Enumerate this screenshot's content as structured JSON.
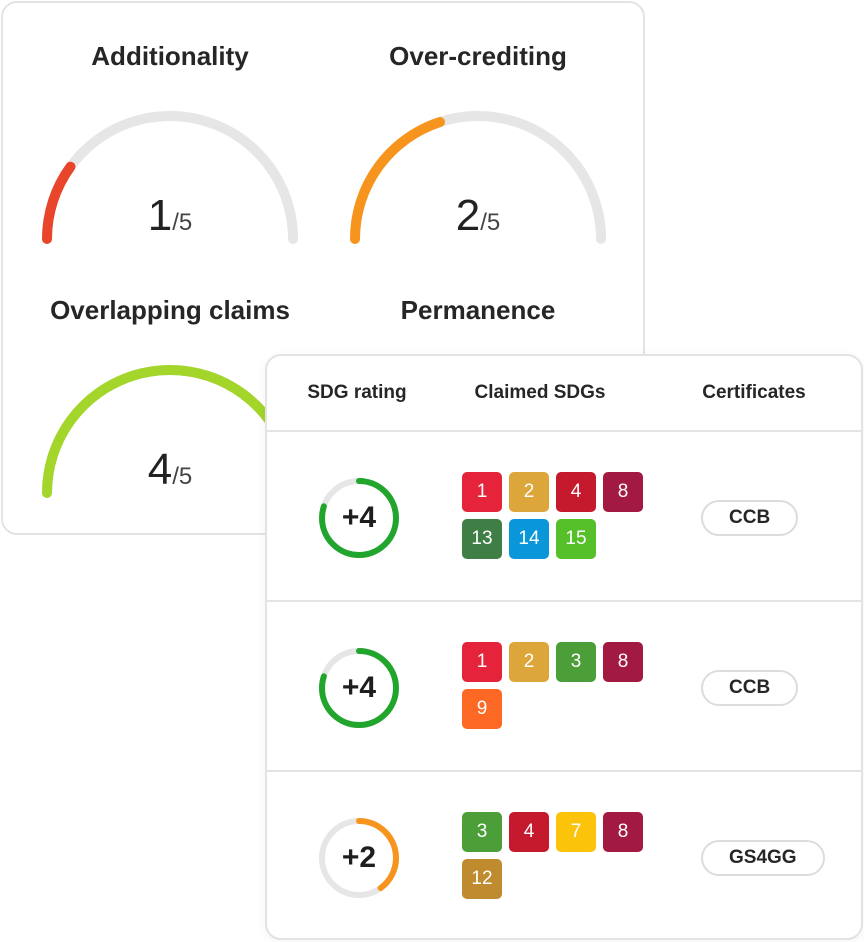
{
  "ratings": [
    {
      "title": "Additionality",
      "score": "1",
      "max": "/5",
      "fraction": 0.2,
      "color": "#e8452a"
    },
    {
      "title": "Over-crediting",
      "score": "2",
      "max": "/5",
      "fraction": 0.4,
      "color": "#f7941d"
    },
    {
      "title": "Overlapping claims",
      "score": "4",
      "max": "/5",
      "fraction": 0.8,
      "color": "#a3d52b"
    },
    {
      "title": "Permanence"
    }
  ],
  "table": {
    "headers": {
      "rating": "SDG rating",
      "claimed": "Claimed SDGs",
      "certs": "Certificates"
    },
    "rows": [
      {
        "rating": "+4",
        "fraction": 0.8,
        "ring_color": "#22a52c",
        "sdgs": [
          {
            "n": "1",
            "color": "#e5243b"
          },
          {
            "n": "2",
            "color": "#dda63a"
          },
          {
            "n": "4",
            "color": "#c5192d"
          },
          {
            "n": "8",
            "color": "#a21942"
          },
          {
            "n": "13",
            "color": "#3f7e44"
          },
          {
            "n": "14",
            "color": "#0a97d9"
          },
          {
            "n": "15",
            "color": "#56c02b"
          }
        ],
        "cert": "CCB"
      },
      {
        "rating": "+4",
        "fraction": 0.8,
        "ring_color": "#22a52c",
        "sdgs": [
          {
            "n": "1",
            "color": "#e5243b"
          },
          {
            "n": "2",
            "color": "#dda63a"
          },
          {
            "n": "3",
            "color": "#4c9f38"
          },
          {
            "n": "8",
            "color": "#a21942"
          },
          {
            "n": "9",
            "color": "#fd6925"
          }
        ],
        "cert": "CCB"
      },
      {
        "rating": "+2",
        "fraction": 0.4,
        "ring_color": "#f7941d",
        "sdgs": [
          {
            "n": "3",
            "color": "#4c9f38"
          },
          {
            "n": "4",
            "color": "#c5192d"
          },
          {
            "n": "7",
            "color": "#fcc30b"
          },
          {
            "n": "8",
            "color": "#a21942"
          },
          {
            "n": "12",
            "color": "#bf8b2e"
          }
        ],
        "cert": "GS4GG"
      }
    ]
  }
}
